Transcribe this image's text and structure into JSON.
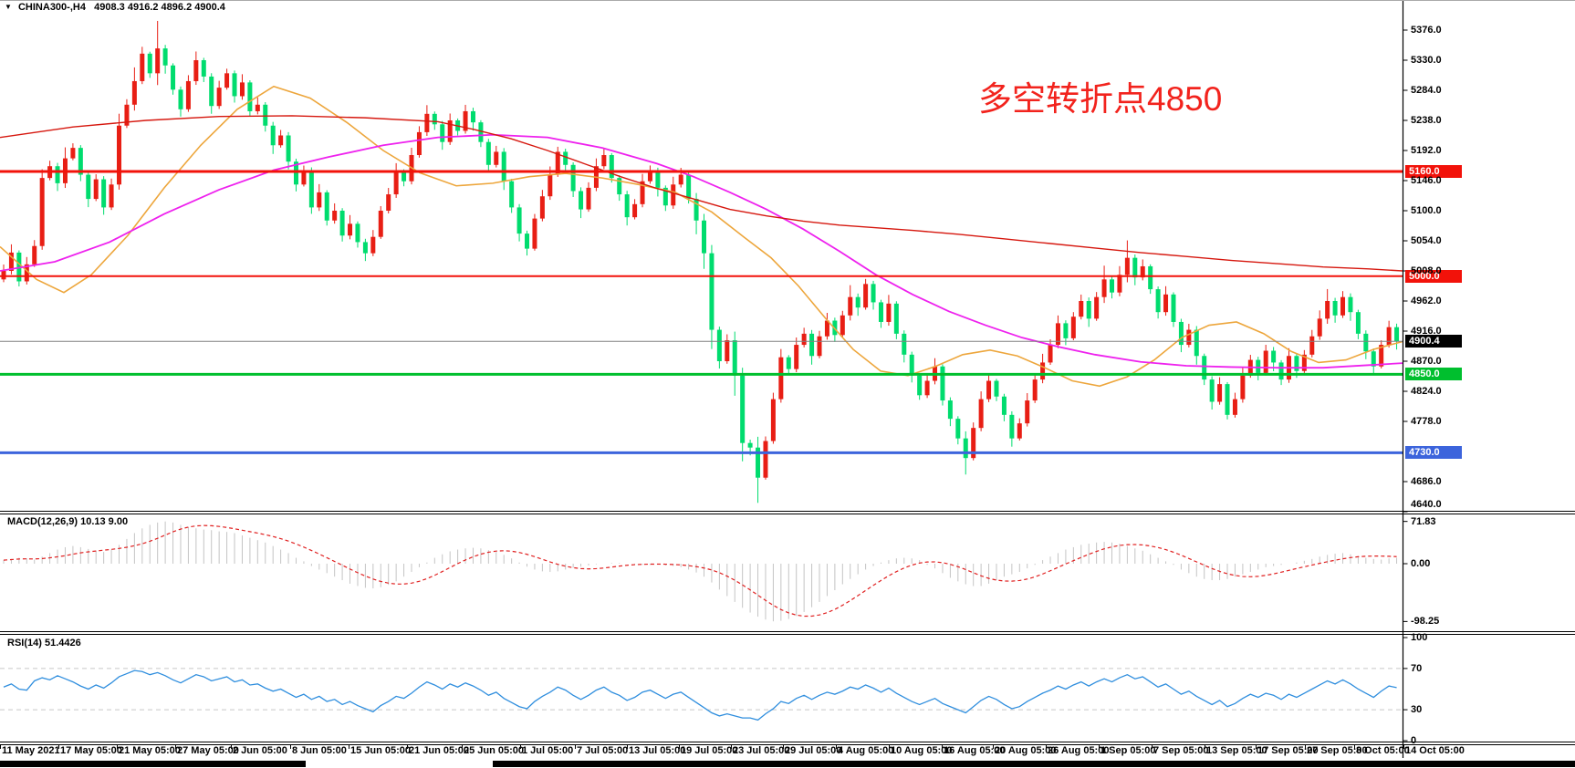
{
  "window": {
    "symbol_period": "CHINA300-,H4",
    "ohlc_text": "4908.3 4916.2 4896.2 4900.4"
  },
  "annotation": {
    "text": "多空转折点4850",
    "color": "#f2231d"
  },
  "chart_data": {
    "type": "candlestick",
    "symbol": "CHINA300-",
    "timeframe": "H4",
    "ohlc_display": {
      "open": 4908.3,
      "high": 4916.2,
      "low": 4896.2,
      "close": 4900.4
    },
    "price_axis_tick_labels": [
      "5376.0",
      "5330.0",
      "5284.0",
      "5238.0",
      "5192.0",
      "5146.0",
      "5100.0",
      "5054.0",
      "5008.0",
      "4962.0",
      "4916.0",
      "4870.0",
      "4824.0",
      "4778.0",
      "4686.0",
      "4640.0"
    ],
    "price_axis_tick_values": [
      5376,
      5330,
      5284,
      5238,
      5192,
      5146,
      5100,
      5054,
      5008,
      4962,
      4916,
      4870,
      4824,
      4778,
      4686,
      4640
    ],
    "time_labels": [
      "11 May 2021",
      "17 May 05:00",
      "21 May 05:00",
      "27 May 05:00",
      "2 Jun 05:00",
      "8 Jun 05:00",
      "15 Jun 05:00",
      "21 Jun 05:00",
      "25 Jun 05:00",
      "1 Jul 05:00",
      "7 Jul 05:00",
      "13 Jul 05:00",
      "19 Jul 05:00",
      "23 Jul 05:00",
      "29 Jul 05:00",
      "4 Aug 05:00",
      "10 Aug 05:00",
      "16 Aug 05:00",
      "20 Aug 05:00",
      "26 Aug 05:00",
      "1 Sep 05:00",
      "7 Sep 05:00",
      "13 Sep 05:00",
      "17 Sep 05:00",
      "27 Sep 05:00",
      "8 Oct 05:00",
      "14 Oct 05:00"
    ],
    "levels": [
      {
        "price": 5160.0,
        "label": "5160.0",
        "color": "#f2120a",
        "line_width": 3
      },
      {
        "price": 5000.0,
        "label": "5000.0",
        "color": "#f2120a",
        "line_width": 2
      },
      {
        "price": 4850.0,
        "label": "4850.0",
        "color": "#00bf2e",
        "line_width": 3
      },
      {
        "price": 4730.0,
        "label": "4730.0",
        "color": "#3c64dc",
        "line_width": 3
      }
    ],
    "current_price": 4900.4,
    "current_price_label": "4900.4",
    "current_price_line_color": "#808080",
    "candles": {
      "up_color": "#e81e14",
      "down_color": "#00dc6e",
      "first_open": 4995,
      "closes": [
        5008,
        5036,
        4992,
        5018,
        5046,
        5150,
        5168,
        5142,
        5180,
        5196,
        5155,
        5118,
        5148,
        5105,
        5140,
        5230,
        5262,
        5298,
        5340,
        5310,
        5348,
        5322,
        5285,
        5255,
        5298,
        5330,
        5305,
        5260,
        5288,
        5310,
        5275,
        5296,
        5252,
        5262,
        5230,
        5200,
        5215,
        5175,
        5140,
        5162,
        5105,
        5128,
        5085,
        5100,
        5062,
        5080,
        5052,
        5035,
        5060,
        5100,
        5125,
        5160,
        5145,
        5185,
        5220,
        5248,
        5232,
        5205,
        5238,
        5222,
        5252,
        5235,
        5205,
        5170,
        5190,
        5145,
        5105,
        5065,
        5042,
        5088,
        5122,
        5155,
        5190,
        5170,
        5130,
        5102,
        5135,
        5168,
        5185,
        5150,
        5125,
        5090,
        5110,
        5145,
        5160,
        5135,
        5108,
        5140,
        5155,
        5118,
        5085,
        5035,
        4918,
        4870,
        4902,
        4848,
        4745,
        4738,
        4692,
        4748,
        4812,
        4876,
        4858,
        4895,
        4912,
        4878,
        4908,
        4932,
        4910,
        4940,
        4968,
        4952,
        4988,
        4960,
        4930,
        4958,
        4912,
        4880,
        4848,
        4818,
        4840,
        4862,
        4810,
        4782,
        4752,
        4722,
        4768,
        4812,
        4840,
        4816,
        4788,
        4752,
        4775,
        4810,
        4842,
        4868,
        4895,
        4928,
        4905,
        4938,
        4962,
        4935,
        4968,
        4995,
        4975,
        5002,
        5028,
        4998,
        5015,
        4980,
        4945,
        4972,
        4930,
        4895,
        4918,
        4878,
        4842,
        4808,
        4835,
        4788,
        4812,
        4848,
        4872,
        4852,
        4886,
        4868,
        4842,
        4878,
        4855,
        4880,
        4908,
        4935,
        4962,
        4940,
        4968,
        4945,
        4912,
        4885,
        4862,
        4895,
        4922,
        4900.4
      ],
      "wick_pattern": [
        14,
        18,
        11,
        16,
        13,
        19,
        12,
        17,
        15,
        10
      ],
      "wick_overrides": {
        "8": 24,
        "15": 26,
        "17": 30,
        "20": 60,
        "90": 30,
        "91": 34,
        "92": 42,
        "95": 44,
        "96": 40,
        "98": 55,
        "110": 26,
        "125": 36,
        "143": 30,
        "146": 38,
        "172": 26
      }
    },
    "moving_averages": [
      {
        "name": "ma-fast-orange",
        "color": "#eda63c",
        "width": 1.6,
        "points": [
          [
            0,
            5045
          ],
          [
            40,
            4995
          ],
          [
            70,
            4975
          ],
          [
            100,
            5002
          ],
          [
            140,
            5062
          ],
          [
            180,
            5135
          ],
          [
            220,
            5200
          ],
          [
            260,
            5255
          ],
          [
            300,
            5290
          ],
          [
            340,
            5272
          ],
          [
            380,
            5235
          ],
          [
            420,
            5192
          ],
          [
            460,
            5158
          ],
          [
            500,
            5138
          ],
          [
            540,
            5142
          ],
          [
            580,
            5152
          ],
          [
            620,
            5157
          ],
          [
            660,
            5150
          ],
          [
            700,
            5140
          ],
          [
            740,
            5128
          ],
          [
            780,
            5098
          ],
          [
            815,
            5060
          ],
          [
            845,
            5028
          ],
          [
            875,
            4985
          ],
          [
            905,
            4935
          ],
          [
            935,
            4888
          ],
          [
            965,
            4855
          ],
          [
            995,
            4848
          ],
          [
            1025,
            4862
          ],
          [
            1055,
            4880
          ],
          [
            1085,
            4887
          ],
          [
            1115,
            4878
          ],
          [
            1145,
            4860
          ],
          [
            1175,
            4840
          ],
          [
            1205,
            4832
          ],
          [
            1235,
            4846
          ],
          [
            1265,
            4872
          ],
          [
            1295,
            4906
          ],
          [
            1325,
            4925
          ],
          [
            1355,
            4930
          ],
          [
            1385,
            4912
          ],
          [
            1415,
            4885
          ],
          [
            1445,
            4868
          ],
          [
            1475,
            4872
          ],
          [
            1505,
            4888
          ],
          [
            1537,
            4900
          ]
        ]
      },
      {
        "name": "ma-mid-magenta",
        "color": "#ee22ee",
        "width": 1.8,
        "points": [
          [
            0,
            5008
          ],
          [
            60,
            5022
          ],
          [
            120,
            5052
          ],
          [
            180,
            5095
          ],
          [
            240,
            5132
          ],
          [
            300,
            5162
          ],
          [
            360,
            5182
          ],
          [
            420,
            5200
          ],
          [
            480,
            5212
          ],
          [
            540,
            5216
          ],
          [
            600,
            5212
          ],
          [
            660,
            5196
          ],
          [
            720,
            5172
          ],
          [
            760,
            5152
          ],
          [
            800,
            5128
          ],
          [
            840,
            5102
          ],
          [
            880,
            5072
          ],
          [
            920,
            5038
          ],
          [
            960,
            5002
          ],
          [
            1000,
            4972
          ],
          [
            1040,
            4946
          ],
          [
            1080,
            4925
          ],
          [
            1120,
            4906
          ],
          [
            1160,
            4892
          ],
          [
            1200,
            4880
          ],
          [
            1250,
            4869
          ],
          [
            1300,
            4863
          ],
          [
            1350,
            4861
          ],
          [
            1400,
            4860
          ],
          [
            1450,
            4860
          ],
          [
            1500,
            4864
          ],
          [
            1537,
            4867
          ]
        ]
      },
      {
        "name": "ma-slow-red",
        "color": "#d6180f",
        "width": 1.4,
        "points": [
          [
            0,
            5212
          ],
          [
            80,
            5228
          ],
          [
            160,
            5238
          ],
          [
            240,
            5244
          ],
          [
            320,
            5245
          ],
          [
            400,
            5242
          ],
          [
            480,
            5236
          ],
          [
            520,
            5224
          ],
          [
            560,
            5210
          ],
          [
            600,
            5192
          ],
          [
            640,
            5172
          ],
          [
            680,
            5152
          ],
          [
            720,
            5134
          ],
          [
            760,
            5118
          ],
          [
            800,
            5102
          ],
          [
            840,
            5092
          ],
          [
            880,
            5084
          ],
          [
            920,
            5078
          ],
          [
            960,
            5074
          ],
          [
            1000,
            5070
          ],
          [
            1050,
            5064
          ],
          [
            1100,
            5057
          ],
          [
            1150,
            5050
          ],
          [
            1200,
            5043
          ],
          [
            1250,
            5036
          ],
          [
            1300,
            5030
          ],
          [
            1350,
            5024
          ],
          [
            1400,
            5019
          ],
          [
            1450,
            5014
          ],
          [
            1500,
            5011
          ],
          [
            1537,
            5008
          ]
        ]
      }
    ],
    "sub_indicators": [
      {
        "name": "MACD",
        "label": "MACD(12,26,9) 10.13 9.00",
        "params": "12,26,9",
        "main_value": 10.13,
        "signal_value": 9.0,
        "axis_labels": [
          "71.83",
          "0.00",
          "-98.25"
        ],
        "axis_values": [
          71.83,
          0.0,
          -98.25
        ],
        "histogram_color": "#c4c4c4",
        "signal_color": "#e02020",
        "histogram": [
          6,
          8,
          10,
          9,
          7,
          12,
          18,
          24,
          28,
          30,
          28,
          25,
          22,
          20,
          24,
          32,
          42,
          52,
          60,
          66,
          70,
          71.8,
          70,
          66,
          62,
          60,
          58,
          57,
          55,
          54,
          52,
          48,
          44,
          40,
          36,
          30,
          24,
          18,
          10,
          4,
          -4,
          -10,
          -16,
          -22,
          -28,
          -34,
          -38,
          -41,
          -42,
          -40,
          -36,
          -30,
          -22,
          -14,
          -6,
          2,
          10,
          16,
          21,
          24,
          26,
          27,
          26,
          23,
          20,
          15,
          9,
          2,
          -5,
          -10,
          -13,
          -14,
          -13,
          -10,
          -7,
          -5,
          -3,
          -1,
          0,
          1,
          1,
          0,
          -1,
          -2,
          -2,
          -2,
          -3,
          -4,
          -6,
          -10,
          -15,
          -22,
          -32,
          -44,
          -55,
          -65,
          -75,
          -83,
          -90,
          -95,
          -98,
          -97,
          -94,
          -89,
          -82,
          -74,
          -65,
          -55,
          -45,
          -35,
          -26,
          -18,
          -10,
          -4,
          2,
          6,
          9,
          10,
          9,
          6,
          -2,
          -8,
          -16,
          -24,
          -30,
          -35,
          -38,
          -38,
          -34,
          -28,
          -22,
          -18,
          -14,
          -8,
          -2,
          6,
          12,
          18,
          24,
          28,
          32,
          34,
          36,
          37,
          36,
          34,
          30,
          26,
          22,
          16,
          10,
          4,
          -2,
          -10,
          -16,
          -22,
          -26,
          -28,
          -28,
          -26,
          -22,
          -18,
          -14,
          -10,
          -6,
          -4,
          -2,
          0,
          2,
          5,
          8,
          12,
          15,
          17,
          18,
          16,
          13,
          10,
          8,
          7,
          9,
          10.13
        ]
      },
      {
        "name": "RSI",
        "label": "RSI(14) 51.4426",
        "period": 14,
        "value": 51.4426,
        "axis_labels": [
          "100",
          "70",
          "30",
          "0"
        ],
        "axis_values": [
          100,
          70,
          30,
          0
        ],
        "level_lines": [
          70,
          30
        ],
        "line_color": "#2f8ede",
        "values": [
          52,
          55,
          50,
          49,
          58,
          61,
          59,
          63,
          60,
          57,
          53,
          50,
          54,
          51,
          56,
          62,
          65,
          68,
          67,
          64,
          66,
          63,
          59,
          56,
          60,
          64,
          62,
          58,
          60,
          62,
          57,
          59,
          54,
          55,
          51,
          48,
          50,
          46,
          42,
          45,
          40,
          43,
          38,
          40,
          35,
          38,
          34,
          31,
          28,
          34,
          38,
          43,
          41,
          46,
          52,
          57,
          54,
          50,
          55,
          52,
          56,
          53,
          49,
          44,
          47,
          41,
          37,
          33,
          31,
          38,
          43,
          47,
          52,
          49,
          44,
          40,
          44,
          49,
          52,
          47,
          44,
          39,
          42,
          47,
          49,
          45,
          41,
          45,
          47,
          42,
          37,
          32,
          27,
          24,
          26,
          24,
          22,
          22,
          20,
          26,
          31,
          38,
          36,
          41,
          44,
          40,
          44,
          47,
          45,
          48,
          52,
          50,
          54,
          51,
          47,
          51,
          46,
          42,
          38,
          35,
          38,
          41,
          36,
          33,
          30,
          27,
          33,
          39,
          43,
          40,
          35,
          31,
          33,
          38,
          42,
          46,
          49,
          53,
          50,
          54,
          57,
          53,
          57,
          60,
          57,
          61,
          64,
          60,
          62,
          57,
          52,
          55,
          50,
          45,
          48,
          43,
          39,
          35,
          39,
          33,
          36,
          41,
          45,
          42,
          46,
          44,
          40,
          45,
          42,
          46,
          50,
          54,
          58,
          55,
          59,
          55,
          50,
          46,
          42,
          48,
          53,
          51.44
        ]
      }
    ]
  }
}
